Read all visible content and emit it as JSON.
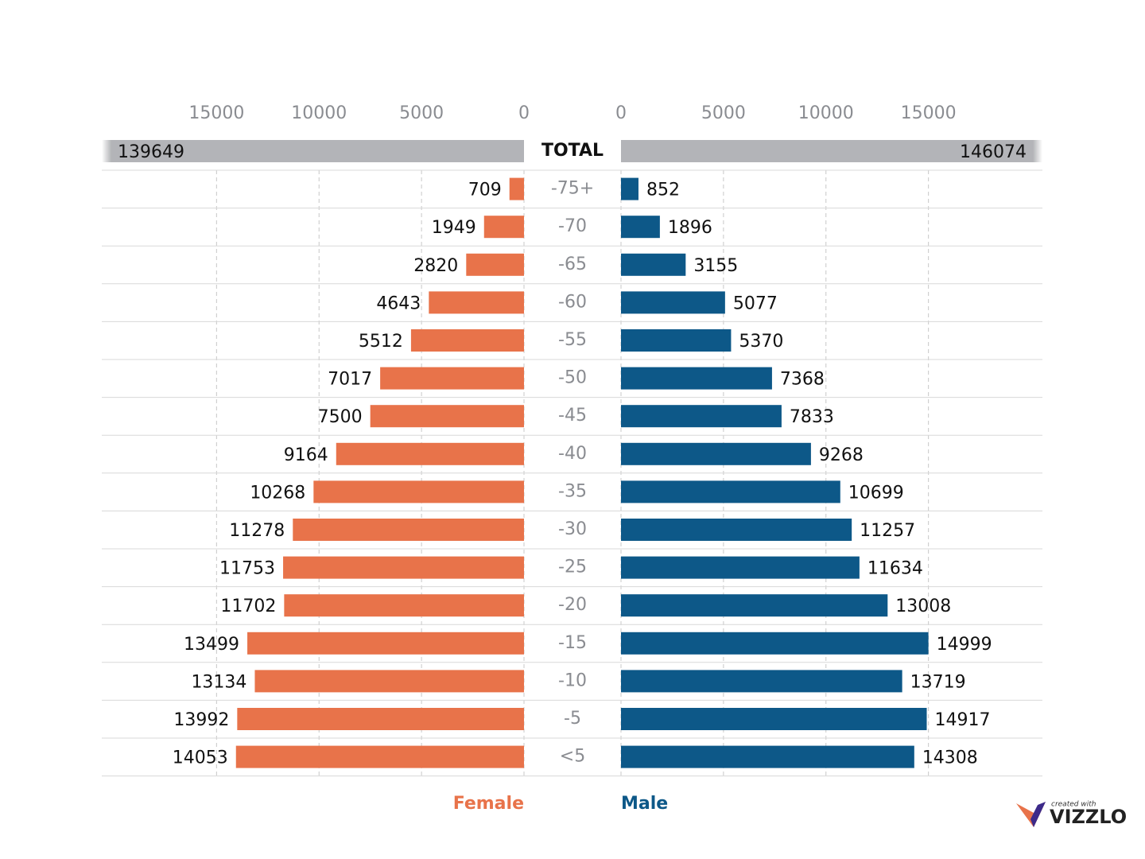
{
  "chart_data": {
    "type": "pyramid",
    "categories": [
      "TOTAL",
      "-75+",
      "-70",
      "-65",
      "-60",
      "-55",
      "-50",
      "-45",
      "-40",
      "-35",
      "-30",
      "-25",
      "-20",
      "-15",
      "-10",
      "-5",
      "<5"
    ],
    "series": [
      {
        "name": "Female",
        "color": "#e8734a",
        "values": [
          139649,
          709,
          1949,
          2820,
          4643,
          5512,
          7017,
          7500,
          9164,
          10268,
          11278,
          11753,
          11702,
          13499,
          13134,
          13992,
          14053
        ]
      },
      {
        "name": "Male",
        "color": "#0d5888",
        "values": [
          146074,
          852,
          1896,
          3155,
          5077,
          5370,
          7368,
          7833,
          9268,
          10699,
          11257,
          11634,
          13008,
          14999,
          13719,
          14917,
          14308
        ]
      }
    ],
    "total_color": "#b3b4b8",
    "xlim": [
      0,
      20600
    ],
    "xticks": [
      0,
      5000,
      10000,
      15000
    ],
    "grid": true,
    "branding": {
      "tagline": "created with",
      "name": "VIZZLO"
    }
  }
}
